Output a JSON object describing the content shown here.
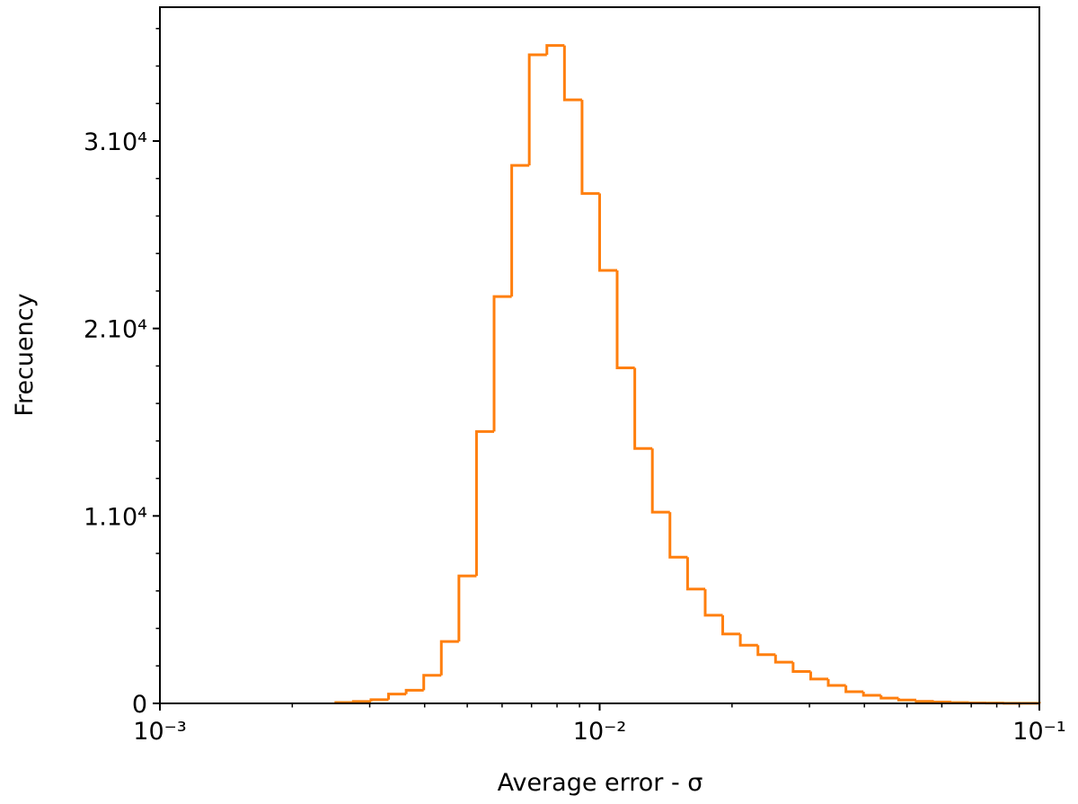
{
  "chart_data": {
    "type": "histogram",
    "x_label": "Average error - σ",
    "y_label": "Frecuency",
    "color": "#ff7f0e",
    "x_log": true,
    "bins": [
      0.002512,
      0.002754,
      0.00302,
      0.003311,
      0.003631,
      0.003981,
      0.004365,
      0.004786,
      0.005248,
      0.005754,
      0.00631,
      0.006918,
      0.007586,
      0.008318,
      0.00912,
      0.01,
      0.01096,
      0.01202,
      0.01318,
      0.01445,
      0.01585,
      0.01738,
      0.01905,
      0.02089,
      0.02291,
      0.02512,
      0.02754,
      0.0302,
      0.03311,
      0.03631,
      0.03981,
      0.04365,
      0.04786,
      0.05248,
      0.05754,
      0.0631,
      0.06918,
      0.07586,
      0.08318,
      0.0912,
      0.1
    ],
    "values": [
      50,
      100,
      200,
      500,
      700,
      1500,
      3300,
      6800,
      14500,
      21700,
      28700,
      34600,
      35100,
      32200,
      27200,
      23100,
      17900,
      13600,
      10200,
      7800,
      6100,
      4700,
      3700,
      3100,
      2600,
      2200,
      1700,
      1300,
      960,
      620,
      430,
      280,
      180,
      110,
      70,
      40,
      25,
      15,
      8,
      5
    ],
    "xlim": [
      0.001,
      0.1
    ],
    "ylim": [
      0,
      37140
    ],
    "xticks": [
      {
        "value": 0.001,
        "label": "10⁻³"
      },
      {
        "value": 0.01,
        "label": "10⁻²"
      },
      {
        "value": 0.1,
        "label": "10⁻¹"
      }
    ],
    "yticks": [
      0,
      {
        "value": 10000,
        "label": "1.10⁴"
      },
      {
        "value": 20000,
        "label": "2.10⁴"
      },
      {
        "value": 30000,
        "label": "3.10⁴"
      }
    ],
    "xticks_minor": [
      0.002,
      0.003,
      0.004,
      0.005,
      0.006,
      0.007,
      0.008,
      0.009,
      0.02,
      0.03,
      0.04,
      0.05,
      0.06,
      0.07,
      0.08,
      0.09
    ],
    "yticks_minor": [
      2000,
      4000,
      6000,
      8000,
      12000,
      14000,
      16000,
      18000,
      22000,
      24000,
      26000,
      28000,
      32000,
      34000,
      36000
    ]
  }
}
